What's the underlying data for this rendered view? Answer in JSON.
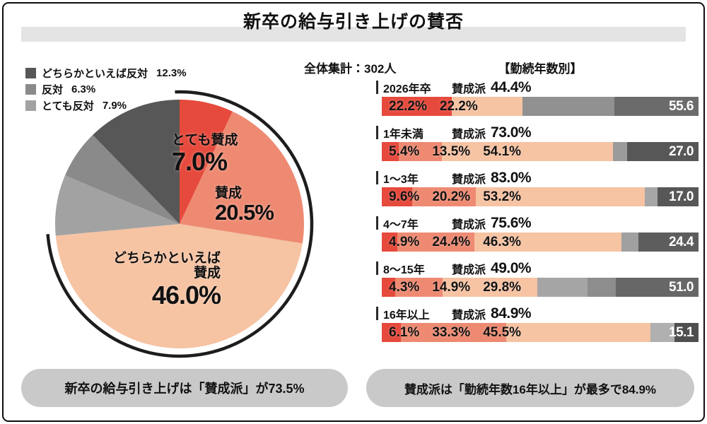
{
  "title": "新卒の給与引き上げの賛否",
  "header": {
    "total": "全体集計：302人",
    "section": "【勤続年数別】"
  },
  "fav_label": "賛成派",
  "legend": [
    {
      "label": "どちらかといえば反対",
      "value": "12.3%",
      "color": "#575757"
    },
    {
      "label": "反対",
      "value": "6.3%",
      "color": "#8a8a8a"
    },
    {
      "label": "とても反対",
      "value": "7.9%",
      "color": "#a2a2a2"
    }
  ],
  "pie": {
    "callouts": {
      "very_favor": {
        "label": "とても賛成",
        "value": "7.0%"
      },
      "favor": {
        "label": "賛成",
        "value": "20.5%"
      },
      "somewhat_favor": {
        "label": "どちらかといえば",
        "label2": "賛成",
        "value": "46.0%"
      }
    }
  },
  "bars": [
    {
      "group": "2026年卒",
      "fav_value": "44.4%",
      "labels": [
        "22.2%",
        "22.2%"
      ],
      "segments": [
        {
          "v": 22.2,
          "c": "#e64a3c"
        },
        {
          "v": 22.2,
          "c": "#f6c3a3"
        },
        {
          "v": 29.0,
          "c": "#919191"
        },
        {
          "v": 26.6,
          "c": "#6b6b6b"
        }
      ],
      "opp": "55.6"
    },
    {
      "group": "1年未満",
      "fav_value": "73.0%",
      "labels": [
        "5.4%",
        "13.5%",
        "54.1%"
      ],
      "segments": [
        {
          "v": 5.4,
          "c": "#e64a3c"
        },
        {
          "v": 13.5,
          "c": "#ee8a72"
        },
        {
          "v": 54.1,
          "c": "#f6c3a3"
        },
        {
          "v": 4.5,
          "c": "#9b9b9b"
        },
        {
          "v": 22.5,
          "c": "#575757"
        }
      ],
      "opp": "27.0"
    },
    {
      "group": "1〜3年",
      "fav_value": "83.0%",
      "labels": [
        "9.6%",
        "20.2%",
        "53.2%"
      ],
      "segments": [
        {
          "v": 9.6,
          "c": "#e64a3c"
        },
        {
          "v": 20.2,
          "c": "#ee8a72"
        },
        {
          "v": 53.2,
          "c": "#f6c3a3"
        },
        {
          "v": 4.0,
          "c": "#a6a6a6"
        },
        {
          "v": 13.0,
          "c": "#575757"
        }
      ],
      "opp": "17.0"
    },
    {
      "group": "4〜7年",
      "fav_value": "75.6%",
      "labels": [
        "4.9%",
        "24.4%",
        "46.3%"
      ],
      "segments": [
        {
          "v": 4.9,
          "c": "#e64a3c"
        },
        {
          "v": 24.4,
          "c": "#ee8a72"
        },
        {
          "v": 46.3,
          "c": "#f6c3a3"
        },
        {
          "v": 5.4,
          "c": "#a0a0a0"
        },
        {
          "v": 19.0,
          "c": "#5d5d5d"
        }
      ],
      "opp": "24.4"
    },
    {
      "group": "8〜15年",
      "fav_value": "49.0%",
      "labels": [
        "4.3%",
        "14.9%",
        "29.8%"
      ],
      "segments": [
        {
          "v": 4.3,
          "c": "#e64a3c"
        },
        {
          "v": 14.9,
          "c": "#ee8a72"
        },
        {
          "v": 29.8,
          "c": "#f6c3a3"
        },
        {
          "v": 16.0,
          "c": "#a5a5a5"
        },
        {
          "v": 9.0,
          "c": "#8d8d8d"
        },
        {
          "v": 26.0,
          "c": "#676767"
        }
      ],
      "opp": "51.0"
    },
    {
      "group": "16年以上",
      "fav_value": "84.9%",
      "labels": [
        "6.1%",
        "33.3%",
        "45.5%"
      ],
      "segments": [
        {
          "v": 6.1,
          "c": "#e64a3c"
        },
        {
          "v": 33.3,
          "c": "#ee8a72"
        },
        {
          "v": 45.5,
          "c": "#f6c3a3"
        },
        {
          "v": 7.5,
          "c": "#b0b0b0"
        },
        {
          "v": 7.6,
          "c": "#4f4f4f"
        }
      ],
      "opp": "15.1"
    }
  ],
  "footers": [
    "新卒の給与引き上げは「賛成派」が73.5%",
    "賛成派は「勤続年数16年以上」が最多で84.9%"
  ],
  "colors": {
    "red": "#e64a3c",
    "salmon": "#ee8a72",
    "peach": "#f6c3a3",
    "arc": "#1d1d1d",
    "band": "#e4e4e4",
    "pill": "#c9c9c9"
  },
  "chart_data": [
    {
      "type": "pie",
      "title": "新卒の給与引き上げの賛否",
      "sample_note": "全体集計：302人",
      "unit": "%",
      "labels": [
        "とても賛成",
        "賛成",
        "どちらかといえば賛成",
        "とても反対",
        "反対",
        "どちらかといえば反対"
      ],
      "keys": [
        "very-favor",
        "favor",
        "somewhat-favor",
        "very-oppose",
        "oppose",
        "somewhat-oppose"
      ],
      "values": [
        7.0,
        20.5,
        46.0,
        7.9,
        6.3,
        12.3
      ],
      "colors": [
        "#e64a3c",
        "#ee8a72",
        "#f6c3a3",
        "#a2a2a2",
        "#8a8a8a",
        "#575757"
      ],
      "start_angle_deg": 0,
      "direction": "clockwise",
      "legend_position": "top-left",
      "highlight_arc": {
        "label": "賛成派",
        "value": 73.5,
        "color": "#1d1d1d"
      }
    },
    {
      "type": "bar",
      "subtype": "horizontal-stacked-100pct",
      "title": "【勤続年数別】",
      "categories": [
        "2026年卒",
        "1年未満",
        "1〜3年",
        "4〜7年",
        "8〜15年",
        "16年以上"
      ],
      "favor_share_label": "賛成派",
      "favor_totals": [
        44.4,
        73.0,
        83.0,
        75.6,
        49.0,
        84.9
      ],
      "opposition_totals": [
        55.6,
        27.0,
        17.0,
        24.4,
        51.0,
        15.1
      ],
      "series": [
        {
          "name": "とても賛成",
          "values": [
            22.2,
            5.4,
            9.6,
            4.9,
            4.3,
            6.1
          ]
        },
        {
          "name": "賛成",
          "values": [
            0,
            13.5,
            20.2,
            24.4,
            14.9,
            33.3
          ]
        },
        {
          "name": "どちらかといえば賛成",
          "values": [
            22.2,
            54.1,
            53.2,
            46.3,
            29.8,
            45.5
          ]
        },
        {
          "name": "反対（計）",
          "values": [
            55.6,
            27.0,
            17.0,
            24.4,
            51.0,
            15.1
          ]
        }
      ],
      "xlim": [
        0,
        100
      ]
    }
  ]
}
